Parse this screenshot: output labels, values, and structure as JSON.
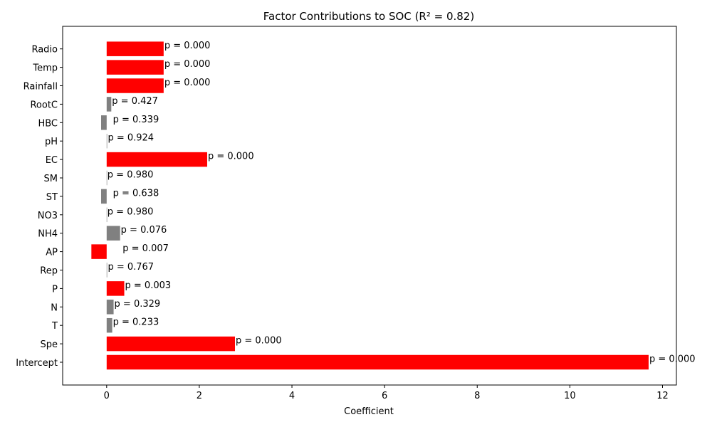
{
  "chart_data": {
    "type": "bar",
    "orientation": "horizontal",
    "title": "Factor Contributions to SOC (R² = 0.82)",
    "xlabel": "Coefficient",
    "ylabel": "",
    "xlim": [
      -0.95,
      12.3
    ],
    "xticks": [
      0,
      2,
      4,
      6,
      8,
      10,
      12
    ],
    "grid": false,
    "colors": {
      "significant": "#ff0000",
      "nonsignificant": "#808080"
    },
    "categories": [
      "Intercept",
      "Spe",
      "T",
      "N",
      "P",
      "Rep",
      "AP",
      "NH4",
      "NO3",
      "ST",
      "SM",
      "EC",
      "pH",
      "HBC",
      "RootC",
      "Rainfall",
      "Temp",
      "Radio"
    ],
    "values": [
      11.7,
      2.77,
      0.12,
      0.15,
      0.38,
      0.01,
      -0.33,
      0.29,
      0.0,
      -0.12,
      0.0,
      2.17,
      0.01,
      -0.12,
      0.1,
      1.23,
      1.23,
      1.23
    ],
    "significant": [
      true,
      true,
      false,
      false,
      true,
      false,
      true,
      false,
      false,
      false,
      false,
      true,
      false,
      false,
      false,
      true,
      true,
      true
    ],
    "labels": [
      "p = 0.000",
      "p = 0.000",
      "p = 0.233",
      "p = 0.329",
      "p = 0.003",
      "p = 0.767",
      "p = 0.007",
      "p = 0.076",
      "p = 0.980",
      "p = 0.638",
      "p = 0.980",
      "p = 0.000",
      "p = 0.924",
      "p = 0.339",
      "p = 0.427",
      "p = 0.000",
      "p = 0.000",
      "p = 0.000"
    ]
  }
}
